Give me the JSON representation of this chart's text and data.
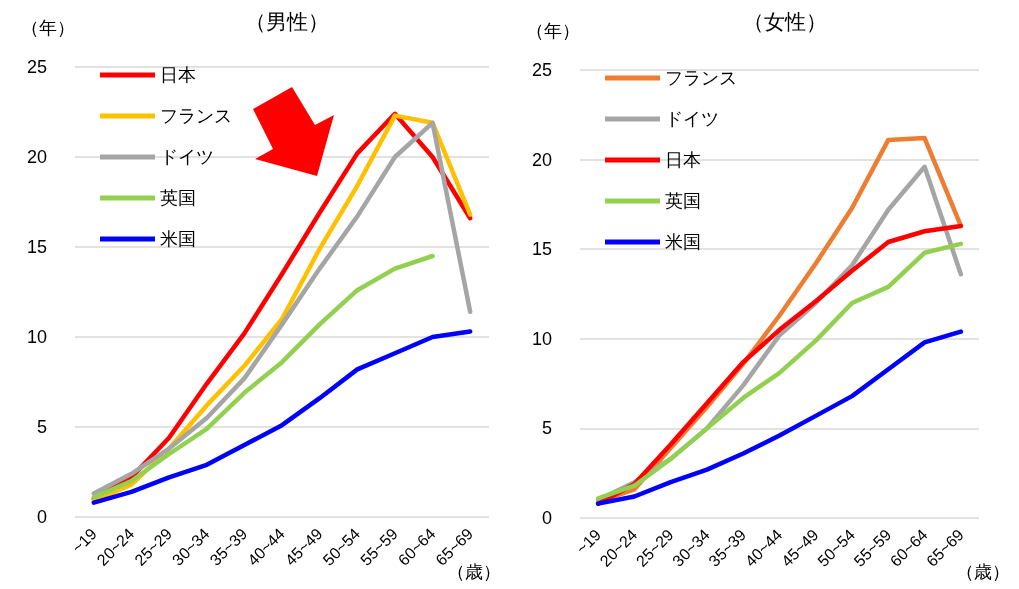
{
  "chart_data": [
    {
      "type": "line",
      "title": "（男性）",
      "xlabel": "（歳）",
      "ylabel": "（年）",
      "categories": [
        "~19",
        "20~24",
        "25~29",
        "30~34",
        "35~39",
        "40~44",
        "45~49",
        "50~54",
        "55~59",
        "60~64",
        "65~69"
      ],
      "ylim": [
        0,
        25
      ],
      "yticks": [
        0,
        5,
        10,
        15,
        20,
        25
      ],
      "grid": "y",
      "legend": "top left",
      "marker": "none",
      "series": [
        {
          "name": "日本",
          "color": "#ff0000",
          "values": [
            1.0,
            2.2,
            4.4,
            7.4,
            10.2,
            13.5,
            16.9,
            20.2,
            22.4,
            20.0,
            16.6
          ]
        },
        {
          "name": "フランス",
          "color": "#ffc000",
          "values": [
            0.9,
            1.8,
            3.8,
            6.2,
            8.4,
            11.0,
            14.9,
            18.4,
            22.3,
            21.9,
            16.8
          ]
        },
        {
          "name": "ドイツ",
          "color": "#a5a5a5",
          "values": [
            1.3,
            2.4,
            3.8,
            5.5,
            7.7,
            10.7,
            13.8,
            16.7,
            20.0,
            21.9,
            11.4
          ]
        },
        {
          "name": "英国",
          "color": "#92d050",
          "values": [
            1.1,
            2.0,
            3.5,
            4.9,
            6.9,
            8.6,
            10.7,
            12.6,
            13.8,
            14.5,
            null
          ]
        },
        {
          "name": "米国",
          "color": "#0000ff",
          "values": [
            0.8,
            1.4,
            2.2,
            2.9,
            4.0,
            5.1,
            6.6,
            8.2,
            9.1,
            10.0,
            10.3
          ]
        }
      ]
    },
    {
      "type": "line",
      "title": "（女性）",
      "xlabel": "（歳）",
      "ylabel": "（年）",
      "categories": [
        "~19",
        "20~24",
        "25~29",
        "30~34",
        "35~39",
        "40~44",
        "45~49",
        "50~54",
        "55~59",
        "60~64",
        "65~69"
      ],
      "ylim": [
        0,
        25
      ],
      "yticks": [
        0,
        5,
        10,
        15,
        20,
        25
      ],
      "grid": "y",
      "legend": "top left",
      "marker": "none",
      "series": [
        {
          "name": "フランス",
          "color": "#ed7d31",
          "values": [
            0.9,
            1.6,
            3.9,
            6.2,
            8.6,
            11.3,
            14.2,
            17.3,
            21.1,
            21.2,
            16.3
          ]
        },
        {
          "name": "ドイツ",
          "color": "#a5a5a5",
          "values": [
            1.0,
            2.0,
            3.3,
            5.0,
            7.4,
            10.2,
            12.0,
            14.1,
            17.2,
            19.6,
            13.6
          ]
        },
        {
          "name": "日本",
          "color": "#ff0000",
          "values": [
            0.8,
            1.9,
            4.1,
            6.4,
            8.7,
            10.5,
            12.1,
            13.8,
            15.4,
            16.0,
            16.3
          ]
        },
        {
          "name": "英国",
          "color": "#92d050",
          "values": [
            1.1,
            1.8,
            3.3,
            5.0,
            6.7,
            8.1,
            9.9,
            12.0,
            12.9,
            14.8,
            15.3
          ]
        },
        {
          "name": "米国",
          "color": "#0000ff",
          "values": [
            0.8,
            1.2,
            2.0,
            2.7,
            3.6,
            4.6,
            5.7,
            6.8,
            8.3,
            9.8,
            10.4
          ]
        }
      ]
    }
  ]
}
